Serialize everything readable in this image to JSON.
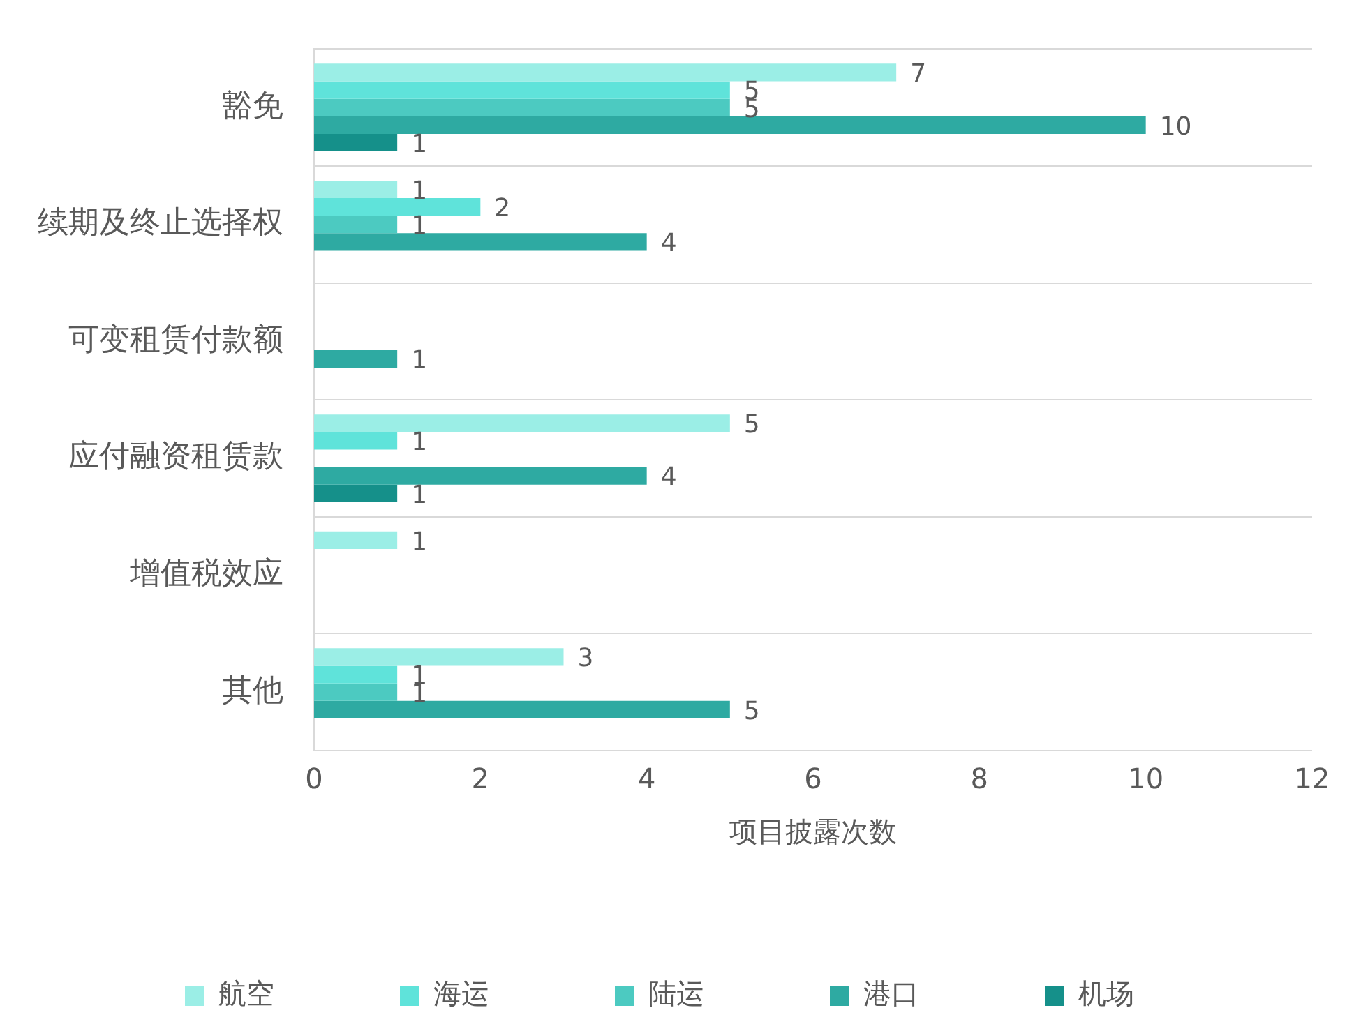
{
  "chart_data": {
    "type": "bar",
    "orientation": "horizontal",
    "xlabel": "项目披露次数",
    "categories": [
      "豁免",
      "续期及终止选择权",
      "可变租赁付款额",
      "应付融资租赁款",
      "增值税效应",
      "其他"
    ],
    "series": [
      {
        "name": "航空",
        "color": "#9beee6",
        "values": [
          7,
          1,
          null,
          5,
          1,
          3
        ]
      },
      {
        "name": "海运",
        "color": "#5fe3da",
        "values": [
          5,
          2,
          null,
          1,
          null,
          1
        ]
      },
      {
        "name": "陆运",
        "color": "#4ccac1",
        "values": [
          5,
          1,
          null,
          null,
          null,
          1
        ]
      },
      {
        "name": "港口",
        "color": "#2eaaa2",
        "values": [
          10,
          4,
          1,
          4,
          null,
          5
        ]
      },
      {
        "name": "机场",
        "color": "#15908a",
        "values": [
          1,
          null,
          null,
          1,
          null,
          null
        ]
      }
    ],
    "xlim": [
      0,
      12
    ],
    "xticks": [
      0,
      2,
      4,
      6,
      8,
      10,
      12
    ],
    "grid": "y",
    "legend": "bottom",
    "data_labels": true
  }
}
